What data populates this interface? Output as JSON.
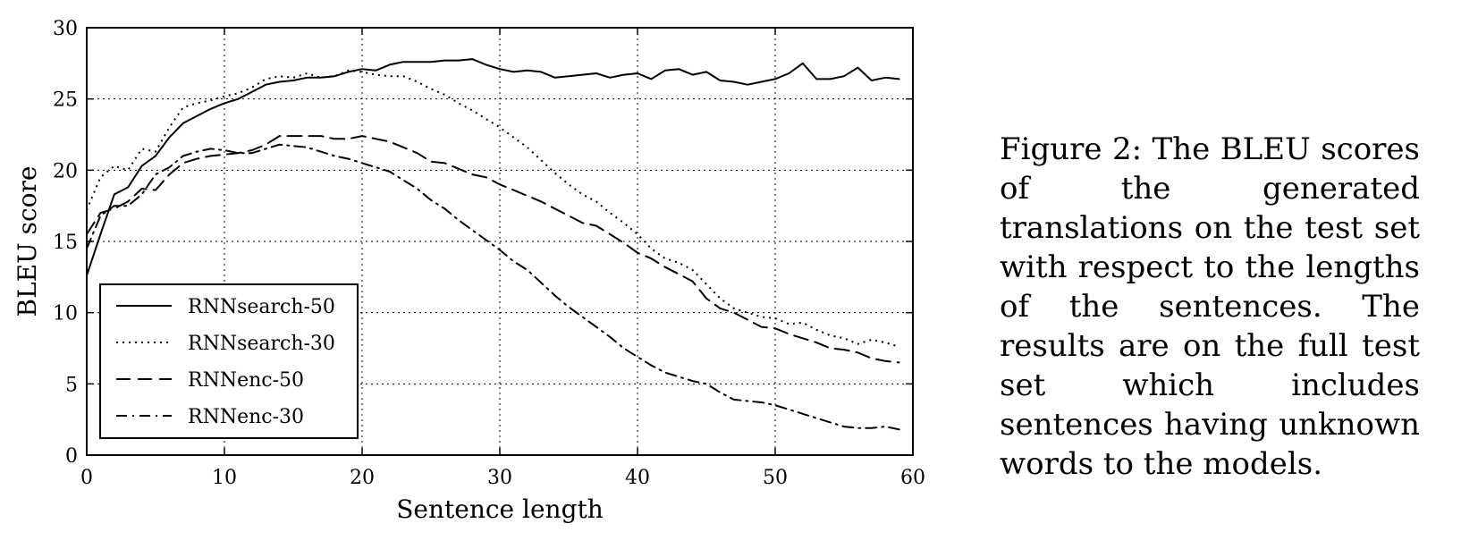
{
  "caption": "Figure 2: The BLEU scores of the generated translations on the test set with respect to the lengths of the sen­tences. The results are on the full test set which in­cludes sentences having un­known words to the models.",
  "chart_data": {
    "type": "line",
    "title": "",
    "xlabel": "Sentence length",
    "ylabel": "BLEU score",
    "xlim": [
      0,
      60
    ],
    "ylim": [
      0,
      30
    ],
    "xticks": [
      "0",
      "10",
      "20",
      "30",
      "40",
      "50",
      "60"
    ],
    "yticks": [
      "0",
      "5",
      "10",
      "15",
      "20",
      "25",
      "30"
    ],
    "grid": true,
    "legend_position": "lower-left",
    "series": [
      {
        "name": "RNNsearch-50",
        "style": "solid",
        "x": [
          0,
          1,
          2,
          3,
          4,
          5,
          6,
          7,
          8,
          9,
          10,
          11,
          12,
          13,
          14,
          15,
          16,
          17,
          18,
          19,
          20,
          21,
          22,
          23,
          24,
          25,
          26,
          27,
          28,
          29,
          30,
          31,
          32,
          33,
          34,
          35,
          36,
          37,
          38,
          39,
          40,
          41,
          42,
          43,
          44,
          45,
          46,
          47,
          48,
          49,
          50,
          51,
          52,
          53,
          54,
          55,
          56,
          57,
          58,
          59
        ],
        "y": [
          12.6,
          15.5,
          18.3,
          18.8,
          20.3,
          21.0,
          22.3,
          23.3,
          23.8,
          24.3,
          24.7,
          25.0,
          25.5,
          26.0,
          26.2,
          26.3,
          26.5,
          26.5,
          26.6,
          26.9,
          27.1,
          27.0,
          27.4,
          27.6,
          27.6,
          27.6,
          27.7,
          27.7,
          27.8,
          27.4,
          27.1,
          26.9,
          27.0,
          26.9,
          26.5,
          26.6,
          26.7,
          26.8,
          26.5,
          26.7,
          26.8,
          26.4,
          27.0,
          27.1,
          26.7,
          26.9,
          26.3,
          26.2,
          26.0,
          26.2,
          26.4,
          26.8,
          27.5,
          26.4,
          26.4,
          26.6,
          27.2,
          26.3,
          26.5,
          26.4
        ]
      },
      {
        "name": "RNNsearch-30",
        "style": "dotted",
        "x": [
          0,
          1,
          2,
          3,
          4,
          5,
          6,
          7,
          8,
          9,
          10,
          11,
          12,
          13,
          14,
          15,
          16,
          17,
          18,
          19,
          20,
          21,
          22,
          23,
          24,
          25,
          26,
          27,
          28,
          29,
          30,
          31,
          32,
          33,
          34,
          35,
          36,
          37,
          38,
          39,
          40,
          41,
          42,
          43,
          44,
          45,
          46,
          47,
          48,
          49,
          50,
          51,
          52,
          53,
          54,
          55,
          56,
          57,
          58,
          59
        ],
        "y": [
          17.2,
          19.5,
          20.3,
          20.0,
          21.5,
          21.3,
          23.0,
          24.4,
          24.7,
          24.9,
          25.2,
          25.4,
          25.8,
          26.4,
          26.6,
          26.5,
          26.8,
          26.5,
          26.6,
          27.0,
          26.9,
          26.7,
          26.6,
          26.6,
          26.2,
          25.7,
          25.3,
          24.7,
          24.2,
          23.6,
          23.0,
          22.3,
          21.6,
          20.7,
          19.8,
          19.0,
          18.3,
          17.8,
          17.0,
          16.3,
          15.5,
          14.5,
          13.8,
          13.5,
          13.0,
          12.0,
          11.0,
          10.3,
          10.0,
          9.7,
          9.6,
          9.2,
          9.3,
          8.8,
          8.4,
          8.2,
          7.8,
          8.1,
          7.9,
          7.6
        ]
      },
      {
        "name": "RNNenc-50",
        "style": "dashed",
        "x": [
          0,
          1,
          2,
          3,
          4,
          5,
          6,
          7,
          8,
          9,
          10,
          11,
          12,
          13,
          14,
          15,
          16,
          17,
          18,
          19,
          20,
          21,
          22,
          23,
          24,
          25,
          26,
          27,
          28,
          29,
          30,
          31,
          32,
          33,
          34,
          35,
          36,
          37,
          38,
          39,
          40,
          41,
          42,
          43,
          44,
          45,
          46,
          47,
          48,
          49,
          50,
          51,
          52,
          53,
          54,
          55,
          56,
          57,
          58,
          59
        ],
        "y": [
          15.5,
          17.0,
          17.3,
          17.8,
          18.7,
          18.6,
          19.7,
          20.5,
          20.8,
          21.0,
          21.1,
          21.2,
          21.4,
          21.8,
          22.4,
          22.4,
          22.4,
          22.4,
          22.2,
          22.2,
          22.4,
          22.2,
          22.0,
          21.6,
          21.2,
          20.6,
          20.5,
          20.1,
          19.7,
          19.5,
          19.0,
          18.6,
          18.2,
          17.8,
          17.3,
          16.8,
          16.3,
          16.1,
          15.5,
          14.9,
          14.2,
          13.8,
          13.2,
          12.7,
          12.2,
          11.0,
          10.3,
          10.0,
          9.5,
          9.0,
          8.9,
          8.5,
          8.2,
          7.9,
          7.5,
          7.4,
          7.2,
          6.8,
          6.6,
          6.5
        ]
      },
      {
        "name": "RNNenc-30",
        "style": "dashdot",
        "x": [
          0,
          1,
          2,
          3,
          4,
          5,
          6,
          7,
          8,
          9,
          10,
          11,
          12,
          13,
          14,
          15,
          16,
          17,
          18,
          19,
          20,
          21,
          22,
          23,
          24,
          25,
          26,
          27,
          28,
          29,
          30,
          31,
          32,
          33,
          34,
          35,
          36,
          37,
          38,
          39,
          40,
          41,
          42,
          43,
          44,
          45,
          46,
          47,
          48,
          49,
          50,
          51,
          52,
          53,
          54,
          55,
          56,
          57,
          58,
          59
        ],
        "y": [
          14.5,
          16.8,
          17.5,
          17.5,
          18.3,
          19.7,
          20.2,
          21.0,
          21.3,
          21.5,
          21.4,
          21.2,
          21.2,
          21.5,
          21.8,
          21.7,
          21.6,
          21.3,
          21.0,
          20.8,
          20.5,
          20.2,
          19.9,
          19.3,
          18.7,
          17.9,
          17.3,
          16.5,
          15.8,
          15.1,
          14.4,
          13.6,
          13.0,
          12.1,
          11.2,
          10.4,
          9.7,
          9.0,
          8.3,
          7.5,
          6.9,
          6.3,
          5.8,
          5.5,
          5.2,
          5.0,
          4.4,
          3.9,
          3.8,
          3.7,
          3.5,
          3.2,
          2.9,
          2.6,
          2.3,
          2.0,
          1.9,
          1.9,
          2.0,
          1.8
        ]
      }
    ]
  }
}
